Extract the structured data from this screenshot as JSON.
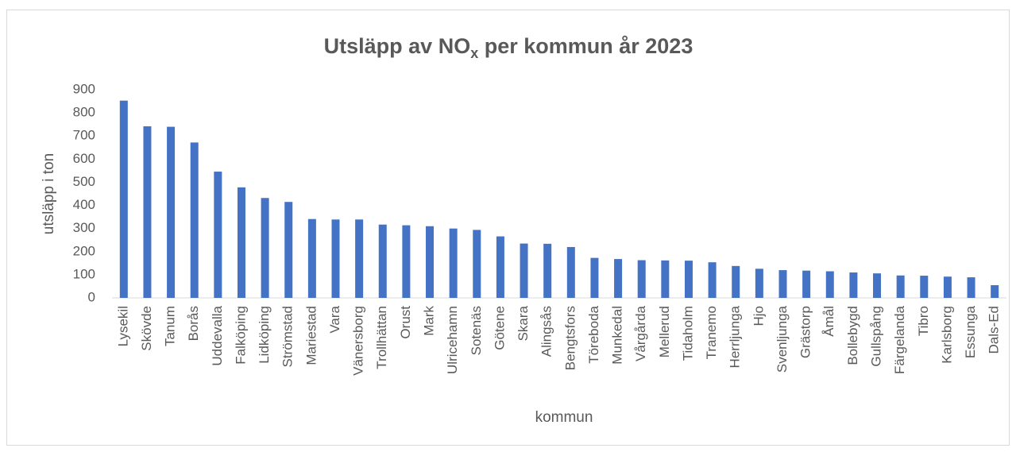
{
  "chart_data": {
    "type": "bar",
    "title": [
      "Utsläpp av NO",
      "x",
      " per kommun år 2023"
    ],
    "x_label": "kommun",
    "y_label": "utsläpp i ton",
    "categories": [
      "Lysekil",
      "Skövde",
      "Tanum",
      "Borås",
      "Uddevalla",
      "Falköping",
      "Lidköping",
      "Strömstad",
      "Mariestad",
      "Vara",
      "Vänersborg",
      "Trollhättan",
      "Orust",
      "Mark",
      "Ulricehamn",
      "Sotenäs",
      "Götene",
      "Skara",
      "Alingsås",
      "Bengtsfors",
      "Töreboda",
      "Munkedal",
      "Vårgårda",
      "Mellerud",
      "Tidaholm",
      "Tranemo",
      "Herrljunga",
      "Hjo",
      "Svenljunga",
      "Grästorp",
      "Åmål",
      "Bollebygd",
      "Gullspång",
      "Färgelanda",
      "Tibro",
      "Karlsborg",
      "Essunga",
      "Dals-Ed"
    ],
    "values": [
      853,
      742,
      740,
      672,
      546,
      478,
      432,
      415,
      341,
      339,
      339,
      317,
      314,
      310,
      300,
      294,
      266,
      235,
      234,
      220,
      173,
      168,
      163,
      162,
      161,
      154,
      138,
      126,
      120,
      118,
      115,
      110,
      106,
      97,
      96,
      92,
      89,
      55
    ],
    "color": "#4472c4",
    "ylim": [
      0,
      900
    ],
    "yticks": [
      0,
      100,
      200,
      300,
      400,
      500,
      600,
      700,
      800,
      900
    ],
    "grid": false
  }
}
